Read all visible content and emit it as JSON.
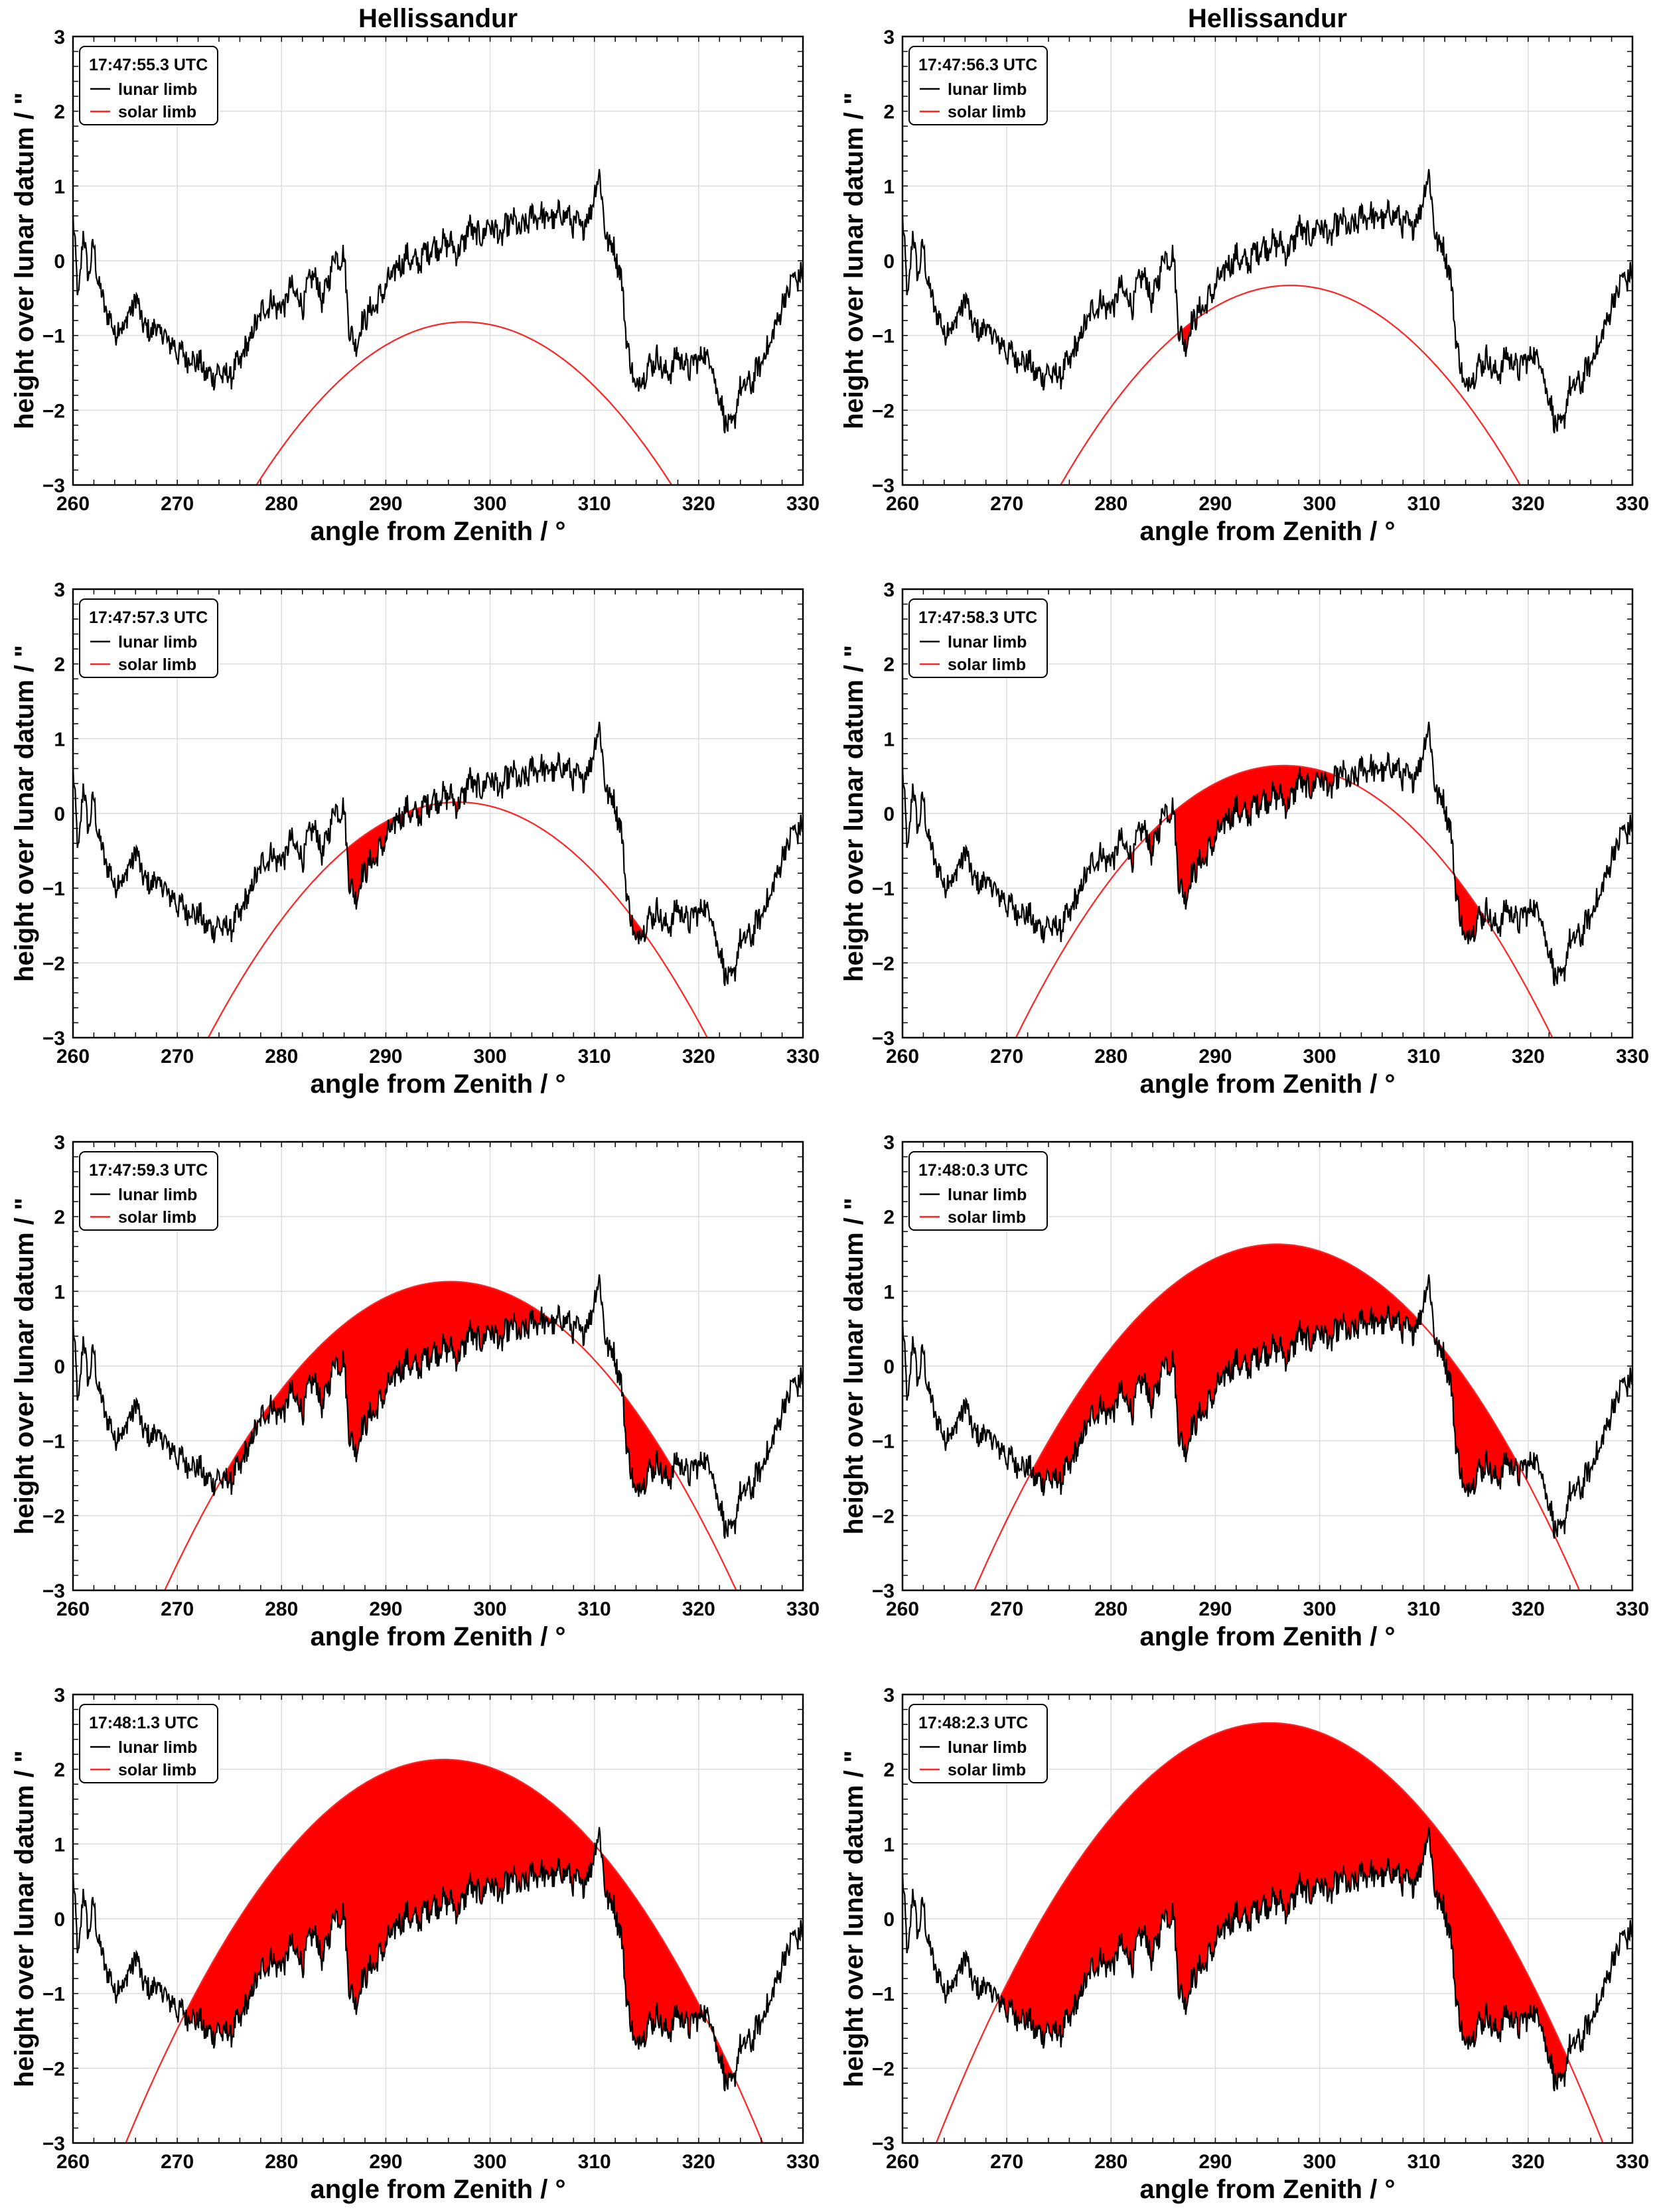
{
  "figure": {
    "title": "Hellissandur"
  },
  "colors": {
    "lunar": "#000000",
    "solar": "#ff2222",
    "fill": "#ff0000",
    "grid": "#dcdcdc"
  },
  "chart_data": [
    {
      "type": "line",
      "title": "Hellissandur",
      "timestamp": "17:47:55.3 UTC",
      "legend": [
        "lunar limb",
        "solar limb"
      ],
      "xlabel": "angle from Zenith / °",
      "ylabel": "height over lunar datum / \"",
      "xlim": [
        260,
        330
      ],
      "ylim": [
        -3,
        3
      ],
      "xticks": [
        "260",
        "270",
        "280",
        "290",
        "300",
        "310",
        "320",
        "330"
      ],
      "yticks": [
        "3",
        "2",
        "1",
        "0",
        "−1",
        "−2",
        "−3"
      ],
      "solar_limb": {
        "apex_angle": 297.5,
        "apex_height": -0.82,
        "curvature": 0.0055
      }
    },
    {
      "type": "line",
      "title": "Hellissandur",
      "timestamp": "17:47:56.3 UTC",
      "legend": [
        "lunar limb",
        "solar limb"
      ],
      "xlabel": "angle from Zenith / °",
      "ylabel": "height over lunar datum / \"",
      "xlim": [
        260,
        330
      ],
      "ylim": [
        -3,
        3
      ],
      "xticks": [
        "260",
        "270",
        "280",
        "290",
        "300",
        "310",
        "320",
        "330"
      ],
      "yticks": [
        "3",
        "2",
        "1",
        "0",
        "−1",
        "−2",
        "−3"
      ],
      "solar_limb": {
        "apex_angle": 297.2,
        "apex_height": -0.33,
        "curvature": 0.0055
      }
    },
    {
      "type": "line",
      "title": "",
      "timestamp": "17:47:57.3 UTC",
      "legend": [
        "lunar limb",
        "solar limb"
      ],
      "xlabel": "angle from Zenith / °",
      "ylabel": "height over lunar datum / \"",
      "xlim": [
        260,
        330
      ],
      "ylim": [
        -3,
        3
      ],
      "xticks": [
        "260",
        "270",
        "280",
        "290",
        "300",
        "310",
        "320",
        "330"
      ],
      "yticks": [
        "3",
        "2",
        "1",
        "0",
        "−1",
        "−2",
        "−3"
      ],
      "solar_limb": {
        "apex_angle": 296.9,
        "apex_height": 0.15,
        "curvature": 0.0055
      }
    },
    {
      "type": "line",
      "title": "",
      "timestamp": "17:47:58.3 UTC",
      "legend": [
        "lunar limb",
        "solar limb"
      ],
      "xlabel": "angle from Zenith / °",
      "ylabel": "height over lunar datum / \"",
      "xlim": [
        260,
        330
      ],
      "ylim": [
        -3,
        3
      ],
      "xticks": [
        "260",
        "270",
        "280",
        "290",
        "300",
        "310",
        "320",
        "330"
      ],
      "yticks": [
        "3",
        "2",
        "1",
        "0",
        "−1",
        "−2",
        "−3"
      ],
      "solar_limb": {
        "apex_angle": 296.6,
        "apex_height": 0.64,
        "curvature": 0.0055
      }
    },
    {
      "type": "line",
      "title": "",
      "timestamp": "17:47:59.3 UTC",
      "legend": [
        "lunar limb",
        "solar limb"
      ],
      "xlabel": "angle from Zenith / °",
      "ylabel": "height over lunar datum / \"",
      "xlim": [
        260,
        330
      ],
      "ylim": [
        -3,
        3
      ],
      "xticks": [
        "260",
        "270",
        "280",
        "290",
        "300",
        "310",
        "320",
        "330"
      ],
      "yticks": [
        "3",
        "2",
        "1",
        "0",
        "−1",
        "−2",
        "−3"
      ],
      "solar_limb": {
        "apex_angle": 296.2,
        "apex_height": 1.13,
        "curvature": 0.0055
      }
    },
    {
      "type": "line",
      "title": "",
      "timestamp": "17:48:0.3 UTC",
      "legend": [
        "lunar limb",
        "solar limb"
      ],
      "xlabel": "angle from Zenith / °",
      "ylabel": "height over lunar datum / \"",
      "xlim": [
        260,
        330
      ],
      "ylim": [
        -3,
        3
      ],
      "xticks": [
        "260",
        "270",
        "280",
        "290",
        "300",
        "310",
        "320",
        "330"
      ],
      "yticks": [
        "3",
        "2",
        "1",
        "0",
        "−1",
        "−2",
        "−3"
      ],
      "solar_limb": {
        "apex_angle": 295.9,
        "apex_height": 1.63,
        "curvature": 0.0055
      }
    },
    {
      "type": "line",
      "title": "",
      "timestamp": "17:48:1.3 UTC",
      "legend": [
        "lunar limb",
        "solar limb"
      ],
      "xlabel": "angle from Zenith / °",
      "ylabel": "height over lunar datum / \"",
      "xlim": [
        260,
        330
      ],
      "ylim": [
        -3,
        3
      ],
      "xticks": [
        "260",
        "270",
        "280",
        "290",
        "300",
        "310",
        "320",
        "330"
      ],
      "yticks": [
        "3",
        "2",
        "1",
        "0",
        "−1",
        "−2",
        "−3"
      ],
      "solar_limb": {
        "apex_angle": 295.6,
        "apex_height": 2.13,
        "curvature": 0.0055
      }
    },
    {
      "type": "line",
      "title": "",
      "timestamp": "17:48:2.3 UTC",
      "legend": [
        "lunar limb",
        "solar limb"
      ],
      "xlabel": "angle from Zenith / °",
      "ylabel": "height over lunar datum / \"",
      "xlim": [
        260,
        330
      ],
      "ylim": [
        -3,
        3
      ],
      "xticks": [
        "260",
        "270",
        "280",
        "290",
        "300",
        "310",
        "320",
        "330"
      ],
      "yticks": [
        "3",
        "2",
        "1",
        "0",
        "−1",
        "−2",
        "−3"
      ],
      "solar_limb": {
        "apex_angle": 295.2,
        "apex_height": 2.62,
        "curvature": 0.0055
      }
    }
  ],
  "lunar_limb_profile": {
    "angles": [
      260,
      260.5,
      261,
      261.5,
      262,
      262.5,
      263,
      264,
      265,
      266,
      267,
      268,
      269,
      270,
      271,
      272,
      273,
      274,
      275,
      276,
      277,
      278,
      279,
      280,
      281,
      282,
      283,
      284,
      285,
      286,
      286.5,
      287,
      288,
      289,
      290,
      291,
      292,
      293,
      294,
      295,
      296,
      297,
      298,
      299,
      300,
      301,
      302,
      303,
      304,
      305,
      306,
      307,
      308,
      309,
      310,
      310.5,
      311,
      311.5,
      312,
      312.5,
      313,
      313.5,
      314,
      315,
      316,
      317,
      318,
      319,
      320,
      321,
      322,
      322.5,
      323,
      323.5,
      324,
      325,
      326,
      327,
      328,
      329,
      330
    ],
    "heights": [
      0.55,
      -0.5,
      0.35,
      -0.2,
      0.2,
      -0.35,
      -0.6,
      -0.95,
      -0.85,
      -0.5,
      -0.95,
      -0.9,
      -1.05,
      -1.2,
      -1.3,
      -1.35,
      -1.55,
      -1.5,
      -1.55,
      -1.35,
      -1.05,
      -0.7,
      -0.55,
      -0.65,
      -0.35,
      -0.6,
      -0.15,
      -0.55,
      0.05,
      0.05,
      -0.9,
      -1.15,
      -0.75,
      -0.6,
      -0.35,
      -0.1,
      0.05,
      -0.05,
      0.15,
      0.2,
      0.25,
      0.1,
      0.45,
      0.3,
      0.5,
      0.3,
      0.55,
      0.4,
      0.6,
      0.6,
      0.55,
      0.65,
      0.5,
      0.45,
      0.85,
      1.25,
      0.35,
      0.25,
      0.1,
      -0.15,
      -0.9,
      -1.45,
      -1.7,
      -1.45,
      -1.3,
      -1.55,
      -1.25,
      -1.45,
      -1.3,
      -1.25,
      -1.85,
      -2.1,
      -2.3,
      -2.05,
      -1.7,
      -1.65,
      -1.35,
      -1.05,
      -0.6,
      -0.25,
      -0.2
    ]
  }
}
